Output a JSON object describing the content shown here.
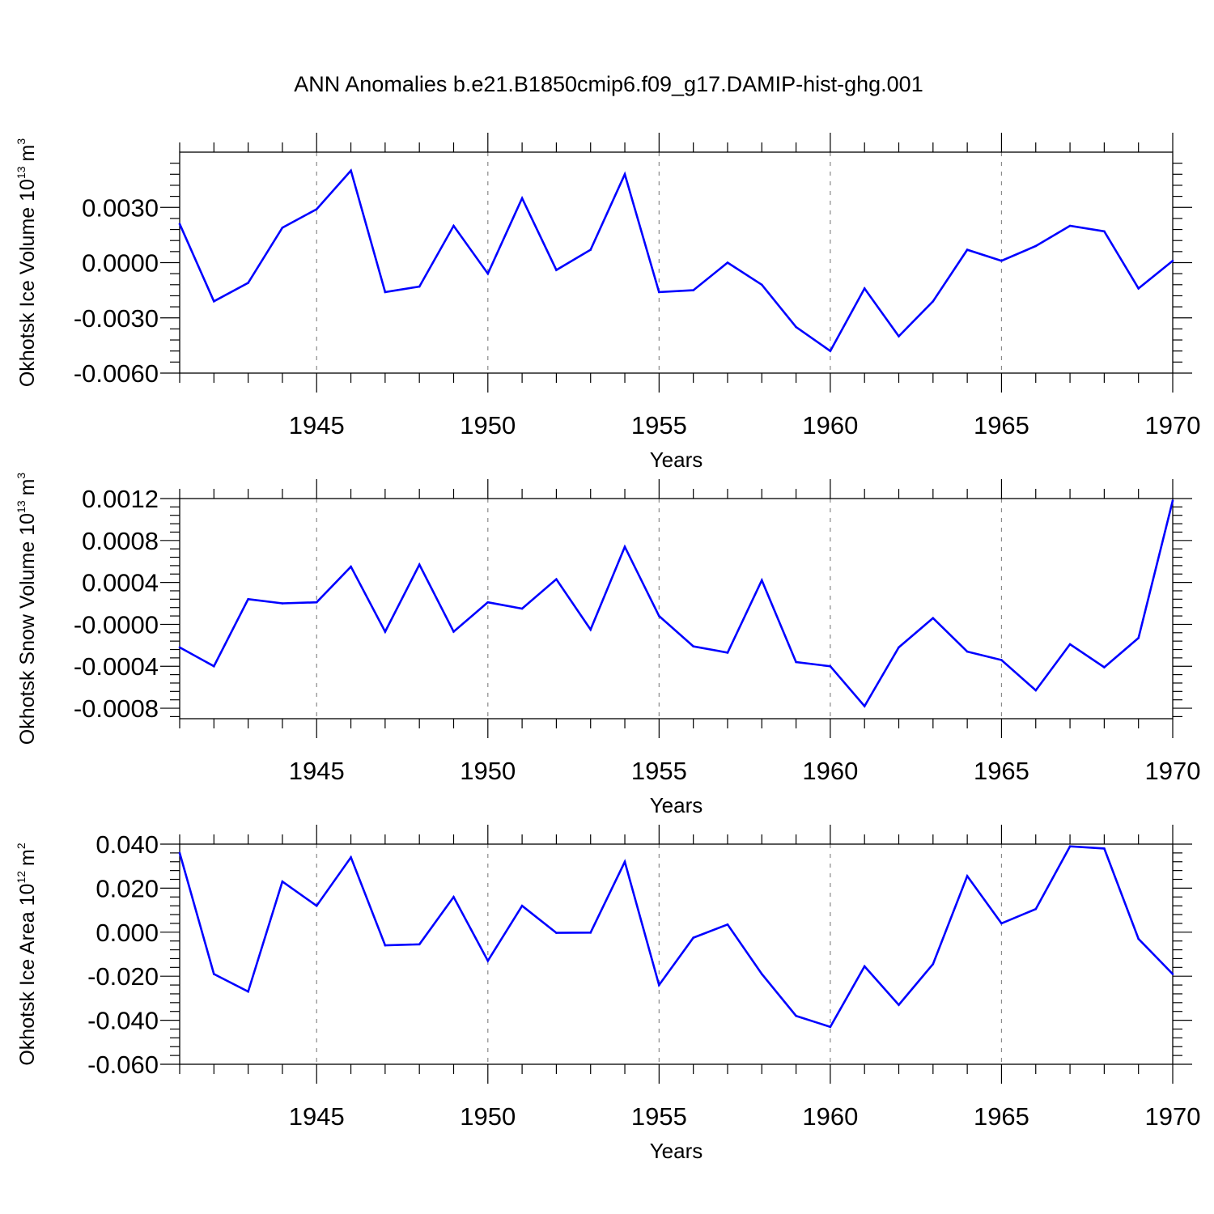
{
  "chart_data": [
    {
      "type": "line",
      "title": "ANN Anomalies b.e21.B1850cmip6.f09_g17.DAMIP-hist-ghg.001",
      "xlabel": "Years",
      "ylabel": "Okhotsk Ice Volume 10",
      "ylabel_exp": "13",
      "ylabel_unit": "m",
      "ylabel_unit_exp": "3",
      "x": [
        1941,
        1942,
        1943,
        1944,
        1945,
        1946,
        1947,
        1948,
        1949,
        1950,
        1951,
        1952,
        1953,
        1954,
        1955,
        1956,
        1957,
        1958,
        1959,
        1960,
        1961,
        1962,
        1963,
        1964,
        1965,
        1966,
        1967,
        1968,
        1969,
        1970
      ],
      "values": [
        0.0021,
        -0.0021,
        -0.0011,
        0.0019,
        0.0029,
        0.005,
        -0.0016,
        -0.0013,
        0.002,
        -0.0006,
        0.0035,
        -0.0004,
        0.0007,
        0.0048,
        -0.0016,
        -0.0015,
        0.0,
        -0.0012,
        -0.0035,
        -0.0048,
        -0.0014,
        -0.004,
        -0.0021,
        0.0007,
        0.0001,
        0.0009,
        0.002,
        0.0017,
        -0.0014,
        0.0001
      ],
      "xlim": [
        1941,
        1970
      ],
      "ylim": [
        -0.006,
        0.006
      ],
      "xticks": [
        1945,
        1950,
        1955,
        1960,
        1965,
        1970
      ],
      "xtick_labels": [
        "1945",
        "1950",
        "1955",
        "1960",
        "1965",
        "1970"
      ],
      "yticks": [
        0.003,
        0.0,
        -0.003,
        -0.006
      ],
      "ytick_labels": [
        "0.0030",
        "0.0000",
        "-0.0030",
        "-0.0060"
      ],
      "color": "#0000ff",
      "grid": "vertical dashed at major x ticks"
    },
    {
      "type": "line",
      "xlabel": "Years",
      "ylabel": "Okhotsk Snow Volume 10",
      "ylabel_exp": "13",
      "ylabel_unit": "m",
      "ylabel_unit_exp": "3",
      "x": [
        1941,
        1942,
        1943,
        1944,
        1945,
        1946,
        1947,
        1948,
        1949,
        1950,
        1951,
        1952,
        1953,
        1954,
        1955,
        1956,
        1957,
        1958,
        1959,
        1960,
        1961,
        1962,
        1963,
        1964,
        1965,
        1966,
        1967,
        1968,
        1969,
        1970
      ],
      "values": [
        -0.00022,
        -0.0004,
        0.00024,
        0.0002,
        0.00021,
        0.00055,
        -7e-05,
        0.00057,
        -7e-05,
        0.00021,
        0.00015,
        0.00043,
        -5e-05,
        0.00074,
        8e-05,
        -0.00021,
        -0.00027,
        0.00042,
        -0.00036,
        -0.0004,
        -0.00078,
        -0.00022,
        6e-05,
        -0.00026,
        -0.00034,
        -0.00063,
        -0.00019,
        -0.00041,
        -0.00013,
        0.00118
      ],
      "xlim": [
        1941,
        1970
      ],
      "ylim": [
        -0.0009,
        0.0012
      ],
      "xticks": [
        1945,
        1950,
        1955,
        1960,
        1965,
        1970
      ],
      "xtick_labels": [
        "1945",
        "1950",
        "1955",
        "1960",
        "1965",
        "1970"
      ],
      "yticks": [
        0.0012,
        0.0008,
        0.0004,
        0.0,
        -0.0004,
        -0.0008
      ],
      "ytick_labels": [
        "0.0012",
        "0.0008",
        "0.0004",
        "-0.0000",
        "-0.0004",
        "-0.0008"
      ],
      "color": "#0000ff",
      "grid": "vertical dashed at major x ticks"
    },
    {
      "type": "line",
      "xlabel": "Years",
      "ylabel": "Okhotsk Ice Area 10",
      "ylabel_exp": "12",
      "ylabel_unit": "m",
      "ylabel_unit_exp": "2",
      "x": [
        1941,
        1942,
        1943,
        1944,
        1945,
        1946,
        1947,
        1948,
        1949,
        1950,
        1951,
        1952,
        1953,
        1954,
        1955,
        1956,
        1957,
        1958,
        1959,
        1960,
        1961,
        1962,
        1963,
        1964,
        1965,
        1966,
        1967,
        1968,
        1969,
        1970
      ],
      "values": [
        0.036,
        -0.019,
        -0.027,
        0.023,
        0.012,
        0.034,
        -0.006,
        -0.0055,
        0.016,
        -0.013,
        0.012,
        -0.0003,
        -0.0002,
        0.032,
        -0.024,
        -0.0025,
        0.0035,
        -0.019,
        -0.038,
        -0.043,
        -0.0155,
        -0.033,
        -0.0145,
        0.0255,
        0.004,
        0.0105,
        0.039,
        0.038,
        -0.003,
        -0.019
      ],
      "xlim": [
        1941,
        1970
      ],
      "ylim": [
        -0.06,
        0.04
      ],
      "xticks": [
        1945,
        1950,
        1955,
        1960,
        1965,
        1970
      ],
      "xtick_labels": [
        "1945",
        "1950",
        "1955",
        "1960",
        "1965",
        "1970"
      ],
      "yticks": [
        0.04,
        0.02,
        0.0,
        -0.02,
        -0.04,
        -0.06
      ],
      "ytick_labels": [
        "0.040",
        "0.020",
        "0.000",
        "-0.020",
        "-0.040",
        "-0.060"
      ],
      "color": "#0000ff",
      "grid": "vertical dashed at major x ticks"
    }
  ]
}
